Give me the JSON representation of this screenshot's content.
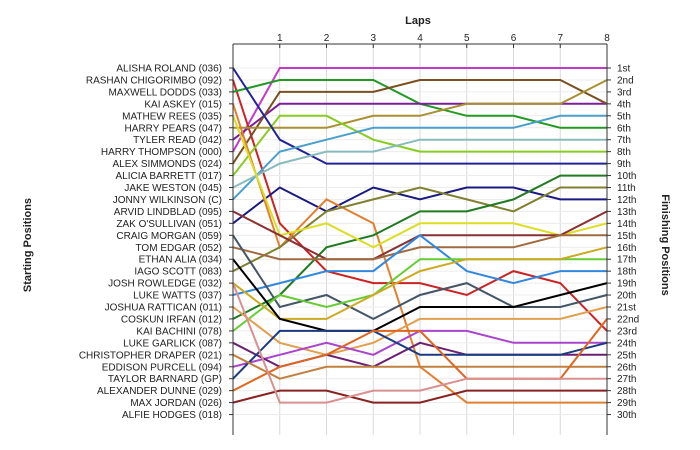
{
  "chart_data": {
    "type": "line",
    "title": "Laps",
    "ylabel_left": "Starting Positions",
    "ylabel_right": "Finishing Positions",
    "x": [
      0,
      1,
      2,
      3,
      4,
      5,
      6,
      7,
      8
    ],
    "x_tick_labels": [
      "1",
      "2",
      "3",
      "4",
      "5",
      "6",
      "7",
      "8"
    ],
    "y_range": [
      1,
      30
    ],
    "grid": true,
    "starting_labels": [
      "ALISHA ROLAND (036)",
      "RASHAN CHIGORIMBO (092)",
      "MAXWELL DODDS (033)",
      "KAI ASKEY (015)",
      "MATHEW REES (035)",
      "HARRY PEARS (047)",
      "TYLER READ (042)",
      "HARRY THOMPSON (000)",
      "ALEX SIMMONDS (024)",
      "ALICIA BARRETT (017)",
      "JAKE WESTON (045)",
      "JONNY WILKINSON (C)",
      "ARVID LINDBLAD (095)",
      "ZAK O'SULLIVAN (051)",
      "CRAIG MORGAN (059)",
      "TOM EDGAR (052)",
      "ETHAN ALIA (034)",
      "IAGO SCOTT (083)",
      "JOSH ROWLEDGE (032)",
      "LUKE WATTS (037)",
      "JOSHUA RATTICAN (011)",
      "COSKUN IRFAN (012)",
      "KAI BACHINI (078)",
      "LUKE GARLICK (087)",
      "CHRISTOPHER DRAPER (021)",
      "EDDISON PURCELL (094)",
      "TAYLOR BARNARD (GP)",
      "ALEXANDER DUNNE (029)",
      "MAX JORDAN (026)",
      "ALFIE HODGES (018)"
    ],
    "finishing_labels": [
      "1st",
      "2nd",
      "3rd",
      "4th",
      "5th",
      "6th",
      "7th",
      "8th",
      "9th",
      "10th",
      "11th",
      "12th",
      "13th",
      "14th",
      "15th",
      "16th",
      "17th",
      "18th",
      "19th",
      "20th",
      "21st",
      "22nd",
      "23rd",
      "24th",
      "25th",
      "26th",
      "27th",
      "28th",
      "29th",
      "30th"
    ],
    "series": [
      {
        "color": "#c03cc8",
        "values": [
          8,
          1,
          1,
          1,
          1,
          1,
          1,
          1,
          1
        ]
      },
      {
        "color": "#cc2222",
        "values": [
          2,
          14,
          18,
          19,
          19,
          20,
          18,
          19,
          23
        ]
      },
      {
        "color": "#229922",
        "values": [
          3,
          2,
          2,
          2,
          4,
          5,
          5,
          6,
          6
        ]
      },
      {
        "color": "#7a1e9a",
        "values": [
          7,
          4,
          4,
          4,
          4,
          4,
          4,
          4,
          4
        ]
      },
      {
        "color": "#7a5020",
        "values": [
          9,
          3,
          3,
          3,
          2,
          2,
          2,
          2,
          4
        ]
      },
      {
        "color": "#a89030",
        "values": [
          6,
          6,
          6,
          5,
          5,
          4,
          4,
          4,
          2
        ]
      },
      {
        "color": "#88cc22",
        "values": [
          10,
          5,
          5,
          7,
          8,
          8,
          8,
          8,
          8
        ]
      },
      {
        "color": "#222299",
        "values": [
          1,
          7,
          9,
          9,
          9,
          9,
          9,
          9,
          9
        ]
      },
      {
        "color": "#4aa0cc",
        "values": [
          12,
          8,
          7,
          6,
          6,
          6,
          6,
          5,
          5
        ]
      },
      {
        "color": "#88bbbb",
        "values": [
          11,
          9,
          8,
          8,
          7,
          7,
          7,
          7,
          7
        ]
      },
      {
        "color": "#1a1a80",
        "values": [
          14,
          11,
          13,
          11,
          12,
          11,
          11,
          12,
          12
        ]
      },
      {
        "color": "#e08030",
        "values": [
          4,
          16,
          12,
          14,
          26,
          29,
          29,
          29,
          29
        ]
      },
      {
        "color": "#808030",
        "values": [
          18,
          16,
          13,
          12,
          11,
          12,
          13,
          11,
          11
        ]
      },
      {
        "color": "#207a20",
        "values": [
          22,
          20,
          16,
          15,
          13,
          13,
          12,
          10,
          10
        ]
      },
      {
        "color": "#dddd22",
        "values": [
          5,
          15,
          14,
          16,
          14,
          14,
          14,
          15,
          14
        ]
      },
      {
        "color": "#8a3030",
        "values": [
          13,
          15,
          17,
          17,
          15,
          15,
          15,
          15,
          13
        ]
      },
      {
        "color": "#a06a40",
        "values": [
          16,
          17,
          17,
          17,
          16,
          16,
          16,
          15,
          15
        ]
      },
      {
        "color": "#3388dd",
        "values": [
          20,
          19,
          18,
          18,
          15,
          18,
          19,
          18,
          18
        ]
      },
      {
        "color": "#445566",
        "values": [
          15,
          21,
          20,
          22,
          20,
          19,
          21,
          21,
          20
        ]
      },
      {
        "color": "#66cc33",
        "values": [
          23,
          20,
          21,
          20,
          17,
          17,
          17,
          17,
          17
        ]
      },
      {
        "color": "#ccaa22",
        "values": [
          19,
          22,
          22,
          20,
          18,
          17,
          17,
          17,
          16
        ]
      },
      {
        "color": "#000000",
        "values": [
          17,
          22,
          23,
          23,
          21,
          21,
          21,
          20,
          19
        ]
      },
      {
        "color": "#e0a050",
        "values": [
          21,
          24,
          25,
          24,
          22,
          22,
          22,
          22,
          21
        ]
      },
      {
        "color": "#aa44cc",
        "values": [
          26,
          25,
          24,
          25,
          23,
          23,
          24,
          24,
          24
        ]
      },
      {
        "color": "#6a2070",
        "values": [
          24,
          26,
          25,
          26,
          24,
          25,
          25,
          25,
          25
        ]
      },
      {
        "color": "#1a3a80",
        "values": [
          27,
          23,
          23,
          23,
          25,
          25,
          25,
          25,
          24
        ]
      },
      {
        "color": "#c08040",
        "values": [
          25,
          27,
          26,
          26,
          26,
          26,
          26,
          26,
          26
        ]
      },
      {
        "color": "#dd6622",
        "values": [
          28,
          26,
          25,
          23,
          23,
          27,
          27,
          27,
          22
        ]
      },
      {
        "color": "#882222",
        "values": [
          29,
          28,
          28,
          29,
          29,
          28,
          28,
          28,
          28
        ]
      },
      {
        "color": "#d89090",
        "values": [
          19,
          29,
          29,
          28,
          28,
          27,
          27,
          27,
          27
        ]
      }
    ]
  }
}
